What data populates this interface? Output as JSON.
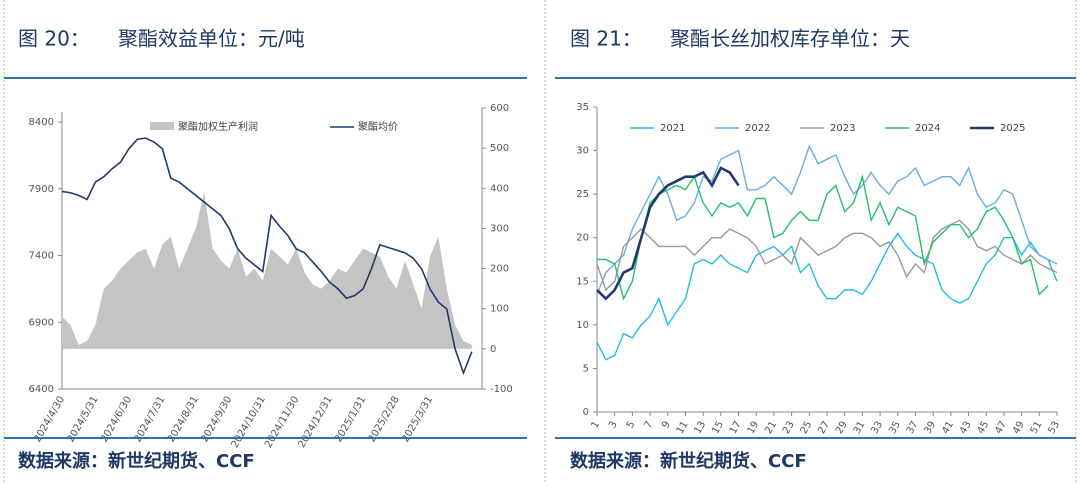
{
  "chart_data": [
    {
      "type": "combo",
      "figure_label": "图 20：",
      "title": "聚酯效益单位：元/吨",
      "source": "数据来源：新世纪期货、CCF",
      "categories": [
        "2024/4/30",
        null,
        null,
        null,
        "2024/5/31",
        null,
        null,
        null,
        "2024/6/30",
        null,
        null,
        null,
        "2024/7/31",
        null,
        null,
        null,
        "2024/8/31",
        null,
        null,
        null,
        "2024/9/30",
        null,
        null,
        null,
        "2024/10/31",
        null,
        null,
        null,
        "2024/11/30",
        null,
        null,
        null,
        "2024/12/31",
        null,
        null,
        null,
        "2025/1/31",
        null,
        null,
        null,
        "2025/2/28",
        null,
        null,
        null,
        "2025/3/31",
        null,
        null,
        null,
        null,
        null
      ],
      "series": [
        {
          "name": "聚酯加权生产利润",
          "kind": "area",
          "axis": "y2",
          "color": "#c4c4c4",
          "values": [
            80,
            60,
            10,
            20,
            60,
            150,
            170,
            200,
            220,
            240,
            250,
            200,
            260,
            280,
            200,
            250,
            300,
            390,
            250,
            220,
            200,
            250,
            180,
            200,
            170,
            250,
            230,
            210,
            250,
            190,
            160,
            150,
            170,
            200,
            190,
            220,
            250,
            240,
            230,
            180,
            150,
            220,
            160,
            100,
            230,
            280,
            150,
            60,
            20,
            10
          ]
        },
        {
          "name": "聚酯均价",
          "kind": "line",
          "axis": "y",
          "color": "#1f3a6e",
          "values": [
            7880,
            7870,
            7850,
            7820,
            7950,
            7990,
            8050,
            8100,
            8200,
            8270,
            8280,
            8250,
            8200,
            7980,
            7950,
            7900,
            7850,
            7800,
            7750,
            7700,
            7600,
            7450,
            7380,
            7330,
            7280,
            7700,
            7620,
            7550,
            7450,
            7420,
            7350,
            7280,
            7200,
            7150,
            7080,
            7100,
            7150,
            7300,
            7480,
            7460,
            7440,
            7420,
            7380,
            7300,
            7150,
            7050,
            7000,
            6700,
            6520,
            6680
          ]
        }
      ],
      "ylim": [
        6400,
        8400
      ],
      "yticks": [
        6400,
        6900,
        7400,
        7900,
        8400
      ],
      "y2lim": [
        -100,
        600
      ],
      "y2ticks": [
        -100,
        0,
        100,
        200,
        300,
        400,
        500,
        600
      ]
    },
    {
      "type": "line",
      "figure_label": "图 21：",
      "title": "聚酯长丝加权库存单位：天",
      "source": "数据来源：新世纪期货、CCF",
      "x": [
        1,
        2,
        3,
        4,
        5,
        6,
        7,
        8,
        9,
        10,
        11,
        12,
        13,
        14,
        15,
        16,
        17,
        18,
        19,
        20,
        21,
        22,
        23,
        24,
        25,
        26,
        27,
        28,
        29,
        30,
        31,
        32,
        33,
        34,
        35,
        36,
        37,
        38,
        39,
        40,
        41,
        42,
        43,
        44,
        45,
        46,
        47,
        48,
        49,
        50,
        51,
        52,
        53
      ],
      "series": [
        {
          "name": "2021",
          "color": "#22bde0",
          "width": 1.4,
          "values": [
            8,
            6,
            6.5,
            9,
            8.5,
            10,
            11,
            13,
            10,
            11.5,
            13,
            17,
            17.5,
            17,
            18,
            17,
            16.5,
            16,
            18,
            18.5,
            19,
            18,
            19,
            16,
            17,
            14.5,
            13,
            13,
            14,
            14,
            13.5,
            15,
            17,
            19,
            20.5,
            19,
            18,
            17.5,
            17,
            14,
            13,
            12.5,
            13,
            15,
            17,
            18,
            20,
            20,
            18,
            19.5,
            18,
            17.5,
            15
          ]
        },
        {
          "name": "2022",
          "color": "#6aaee0",
          "width": 1.4,
          "values": [
            13.5,
            16,
            17,
            18,
            21,
            23,
            25,
            27,
            25,
            22,
            22.5,
            24,
            27,
            26.5,
            29,
            29.5,
            30,
            25.5,
            25.5,
            26,
            27,
            26,
            25,
            27.5,
            30.5,
            28.5,
            29,
            29.5,
            27,
            25,
            26,
            27.5,
            26,
            25,
            26.5,
            27,
            28,
            26,
            26.5,
            27,
            27,
            26,
            28,
            25,
            23.5,
            24,
            25.5,
            25,
            22,
            19,
            18,
            17.5,
            17
          ]
        },
        {
          "name": "2023",
          "color": "#9a9a9a",
          "width": 1.4,
          "values": [
            17,
            14,
            15,
            19,
            20,
            21,
            20,
            19,
            19,
            19,
            19,
            18,
            19,
            20,
            20,
            21,
            20.5,
            20,
            19,
            17,
            17.5,
            18,
            17,
            20,
            19,
            18,
            18.5,
            19,
            20,
            20.5,
            20.5,
            20,
            19,
            19.5,
            18,
            15.5,
            17,
            16,
            20,
            21,
            21.5,
            22,
            21,
            19,
            18.5,
            19,
            18,
            17.5,
            17,
            18,
            17,
            16.5,
            16
          ]
        },
        {
          "name": "2024",
          "color": "#22c06a",
          "width": 1.4,
          "values": [
            17.5,
            17.5,
            17,
            13,
            15,
            20,
            24,
            25,
            25.5,
            26,
            25.5,
            27,
            24,
            22.5,
            24,
            23.5,
            24,
            22.5,
            24.5,
            24.5,
            20,
            20.5,
            22,
            23,
            22,
            22,
            25,
            26,
            23,
            24,
            27,
            22,
            24,
            21.5,
            23.5,
            23,
            22.5,
            17,
            19.5,
            20.5,
            21.5,
            21.5,
            20,
            21,
            23,
            23.5,
            22,
            20,
            17,
            17.5,
            13.5,
            14.5,
            null
          ]
        },
        {
          "name": "2025",
          "color": "#1f3a6e",
          "width": 2.6,
          "values": [
            14,
            13,
            14,
            16,
            16.5,
            20,
            23.5,
            25,
            26,
            26.5,
            27,
            27,
            27.5,
            26,
            28,
            27.5,
            26,
            null,
            null,
            null,
            null,
            null,
            null,
            null,
            null,
            null,
            null,
            null,
            null,
            null,
            null,
            null,
            null,
            null,
            null,
            null,
            null,
            null,
            null,
            null,
            null,
            null,
            null,
            null,
            null,
            null,
            null,
            null,
            null,
            null,
            null,
            null,
            null
          ]
        }
      ],
      "xlim": [
        1,
        53
      ],
      "xticks": [
        1,
        3,
        5,
        7,
        9,
        11,
        13,
        15,
        17,
        19,
        21,
        23,
        25,
        27,
        29,
        31,
        33,
        35,
        37,
        39,
        41,
        43,
        45,
        47,
        49,
        51,
        53
      ],
      "ylim": [
        0,
        35
      ],
      "yticks": [
        0,
        5,
        10,
        15,
        20,
        25,
        30,
        35
      ]
    }
  ]
}
